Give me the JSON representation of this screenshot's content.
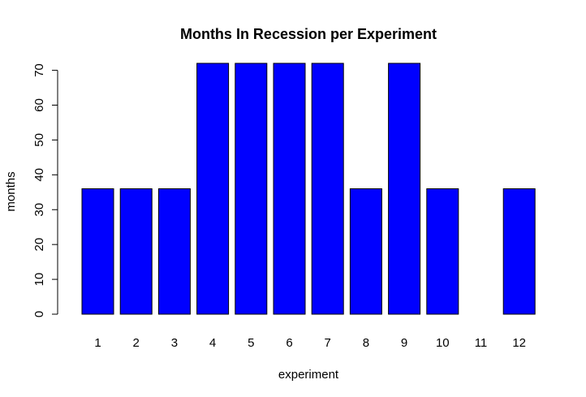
{
  "chart_data": {
    "type": "bar",
    "title": "Months In Recession per Experiment",
    "xlabel": "experiment",
    "ylabel": "months",
    "categories": [
      "1",
      "2",
      "3",
      "4",
      "5",
      "6",
      "7",
      "8",
      "9",
      "10",
      "11",
      "12"
    ],
    "values": [
      36,
      36,
      36,
      72,
      72,
      72,
      72,
      36,
      72,
      36,
      0,
      36
    ],
    "ylim": [
      0,
      72
    ],
    "yticks": [
      0,
      10,
      20,
      30,
      40,
      50,
      60,
      70
    ],
    "grid": false,
    "legend": "none",
    "bar_color": "#0000ff",
    "bar_edge_color": "#000000"
  }
}
